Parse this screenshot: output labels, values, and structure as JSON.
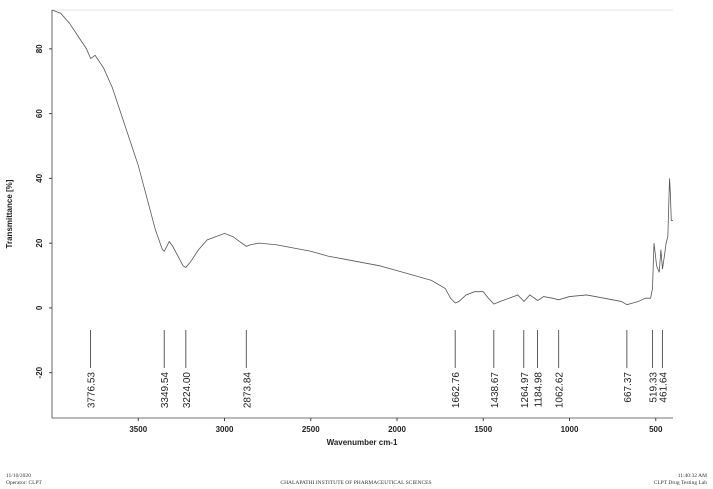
{
  "chart_data": {
    "type": "line",
    "x_label": "Wavenumber cm-1",
    "y_label": "Transmittance [%]",
    "xlim": [
      4000,
      400
    ],
    "ylim": [
      -34,
      92
    ],
    "xticks": [
      3500,
      3000,
      2500,
      2000,
      1500,
      1000,
      500
    ],
    "yticks": [
      -20,
      0,
      20,
      40,
      60,
      80
    ],
    "series": [
      {
        "color": "#555555",
        "x": [
          4000,
          3950,
          3900,
          3850,
          3800,
          3776,
          3750,
          3700,
          3650,
          3600,
          3550,
          3500,
          3450,
          3400,
          3360,
          3349,
          3320,
          3300,
          3270,
          3240,
          3224,
          3200,
          3150,
          3100,
          3050,
          3000,
          2950,
          2900,
          2873,
          2850,
          2800,
          2700,
          2600,
          2500,
          2400,
          2300,
          2200,
          2100,
          2000,
          1900,
          1800,
          1720,
          1690,
          1662,
          1640,
          1600,
          1550,
          1500,
          1470,
          1438,
          1400,
          1350,
          1300,
          1264,
          1230,
          1184,
          1150,
          1100,
          1062,
          1000,
          900,
          800,
          700,
          667,
          600,
          560,
          530,
          519,
          510,
          495,
          480,
          470,
          461,
          450,
          440,
          430,
          420,
          415,
          410,
          400
        ],
        "values": [
          92,
          91,
          88,
          84,
          80,
          77,
          78,
          74,
          68,
          60,
          52,
          44,
          34,
          24,
          18,
          17.5,
          20.5,
          19,
          16,
          13,
          12.5,
          14,
          18,
          21,
          22,
          23,
          22,
          20,
          19,
          19.5,
          20,
          19.5,
          18.5,
          17.5,
          16,
          15,
          14,
          13,
          11.5,
          10,
          8.5,
          6,
          3,
          1.5,
          2,
          4,
          5,
          5,
          3,
          1.2,
          2,
          3,
          4,
          2,
          4,
          2.3,
          3.5,
          3,
          2.5,
          3.5,
          4,
          3,
          2,
          1,
          2,
          3,
          3,
          6,
          20,
          13,
          11,
          18,
          12,
          16,
          20,
          22,
          40,
          35,
          27,
          27
        ]
      }
    ],
    "peaks": [
      {
        "value": 3776.53,
        "label": "3776.53"
      },
      {
        "value": 3349.54,
        "label": "3349.54"
      },
      {
        "value": 3224.0,
        "label": "3224.00"
      },
      {
        "value": 2873.84,
        "label": "2873.84"
      },
      {
        "value": 1662.76,
        "label": "1662.76"
      },
      {
        "value": 1438.67,
        "label": "1438.67"
      },
      {
        "value": 1264.97,
        "label": "1264.97"
      },
      {
        "value": 1184.98,
        "label": "1184.98"
      },
      {
        "value": 1062.62,
        "label": "1062.62"
      },
      {
        "value": 667.37,
        "label": "667.37"
      },
      {
        "value": 519.33,
        "label": "519.33"
      },
      {
        "value": 461.64,
        "label": "461.64"
      }
    ]
  },
  "footer": {
    "date": "11/10/2020",
    "operator": "Operator: CLPT",
    "institute": "CHALAPATHI INSTITUTE OF PHARMACEUTICAL SCIENCES",
    "time": "11:40:32 AM",
    "lab": "CLPT Drug Testing Lab"
  }
}
